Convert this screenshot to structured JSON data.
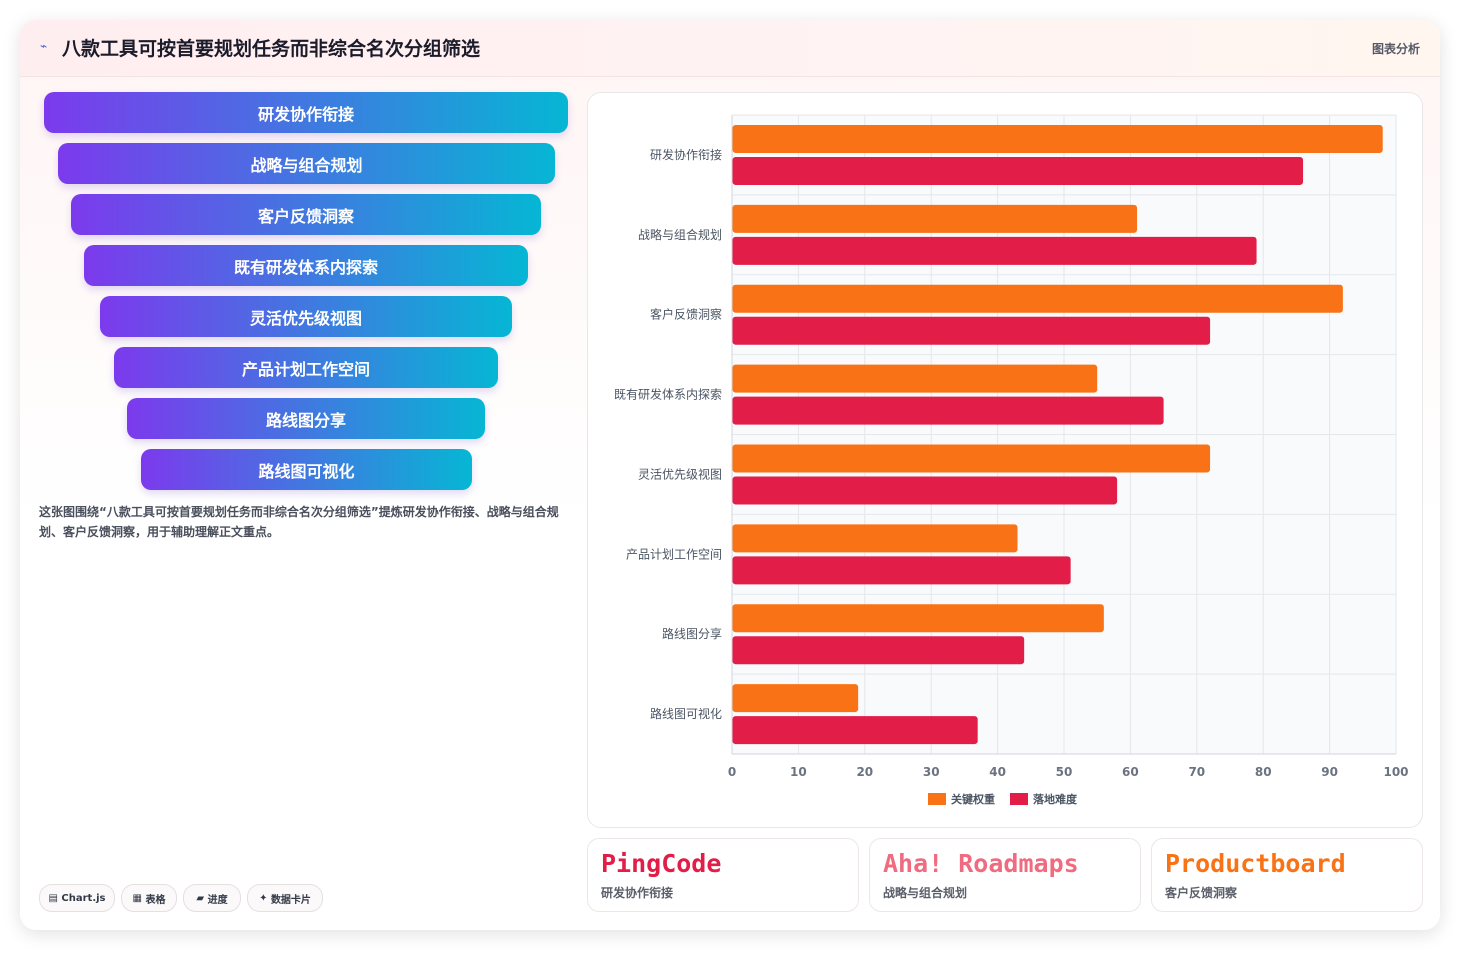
{
  "header": {
    "icon": "sparkline-icon",
    "title": "八款工具可按首要规划任务而非综合名次分组筛选",
    "right_label": "图表分析"
  },
  "funnel": [
    "研发协作衔接",
    "战略与组合规划",
    "客户反馈洞察",
    "既有研发体系内探索",
    "灵活优先级视图",
    "产品计划工作空间",
    "路线图分享",
    "路线图可视化"
  ],
  "summary": "这张图围绕“八款工具可按首要规划任务而非综合名次分组筛选”提炼研发协作衔接、战略与组合规划、客户反馈洞察，用于辅助理解正文重点。",
  "tags": [
    {
      "icon": "chart-icon",
      "label": "Chart.js"
    },
    {
      "icon": "table-icon",
      "label": "表格"
    },
    {
      "icon": "progress-icon",
      "label": "进度"
    },
    {
      "icon": "sparkle-icon",
      "label": "数据卡片"
    }
  ],
  "chart_data": {
    "type": "bar",
    "orientation": "horizontal",
    "categories": [
      "研发协作衔接",
      "战略与组合规划",
      "客户反馈洞察",
      "既有研发体系内探索",
      "灵活优先级视图",
      "产品计划工作空间",
      "路线图分享",
      "路线图可视化"
    ],
    "series": [
      {
        "name": "关键权重",
        "color": "#f97316",
        "values": [
          98,
          61,
          92,
          55,
          72,
          43,
          56,
          19
        ]
      },
      {
        "name": "落地难度",
        "color": "#e11d48",
        "values": [
          86,
          79,
          72,
          65,
          58,
          51,
          44,
          37
        ]
      }
    ],
    "xlim": [
      0,
      100
    ],
    "xticks": [
      0,
      10,
      20,
      30,
      40,
      50,
      60,
      70,
      80,
      90,
      100
    ],
    "grid": true,
    "legend": "bottom"
  },
  "brands": [
    {
      "name": "PingCode",
      "sub": "研发协作衔接",
      "color": "#e11d48"
    },
    {
      "name": "Aha! Roadmaps",
      "sub": "战略与组合规划",
      "color": "#f06b80"
    },
    {
      "name": "Productboard",
      "sub": "客户反馈洞察",
      "color": "#f97316"
    }
  ]
}
